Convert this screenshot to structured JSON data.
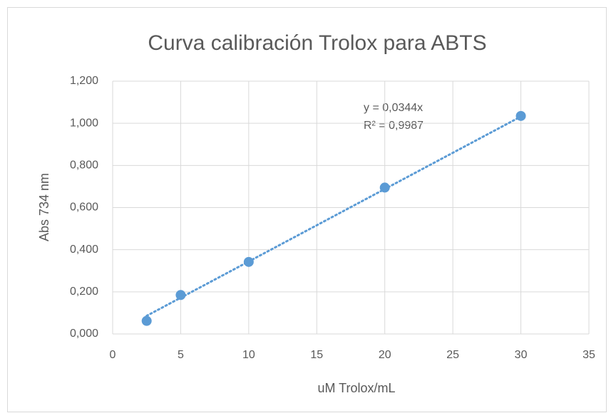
{
  "chart_data": {
    "type": "scatter",
    "title": "Curva calibración Trolox para ABTS",
    "x_label": "uM Trolox/mL",
    "y_label": "Abs 734 nm",
    "x": [
      2.5,
      5,
      10,
      20,
      30
    ],
    "values": [
      0.062,
      0.185,
      0.342,
      0.695,
      1.035
    ],
    "color": "#5b9bd5",
    "trendline": {
      "x": [
        2.5,
        30
      ],
      "values": [
        0.086,
        1.032
      ],
      "color": "#5b9bd5"
    },
    "annotations": [
      "y = 0,0344x",
      "R² = 0,9987"
    ],
    "xlim": [
      0,
      35
    ],
    "xticks": [
      0,
      5,
      10,
      15,
      20,
      25,
      30,
      35
    ],
    "ylim": [
      0,
      1.2
    ],
    "yticks": [
      {
        "value": 0,
        "label": "0,000"
      },
      {
        "value": 0.2,
        "label": "0,200"
      },
      {
        "value": 0.4,
        "label": "0,400"
      },
      {
        "value": 0.6,
        "label": "0,600"
      },
      {
        "value": 0.8,
        "label": "0,800"
      },
      {
        "value": 1.0,
        "label": "1,000"
      },
      {
        "value": 1.2,
        "label": "1,200"
      }
    ],
    "grid": true
  }
}
